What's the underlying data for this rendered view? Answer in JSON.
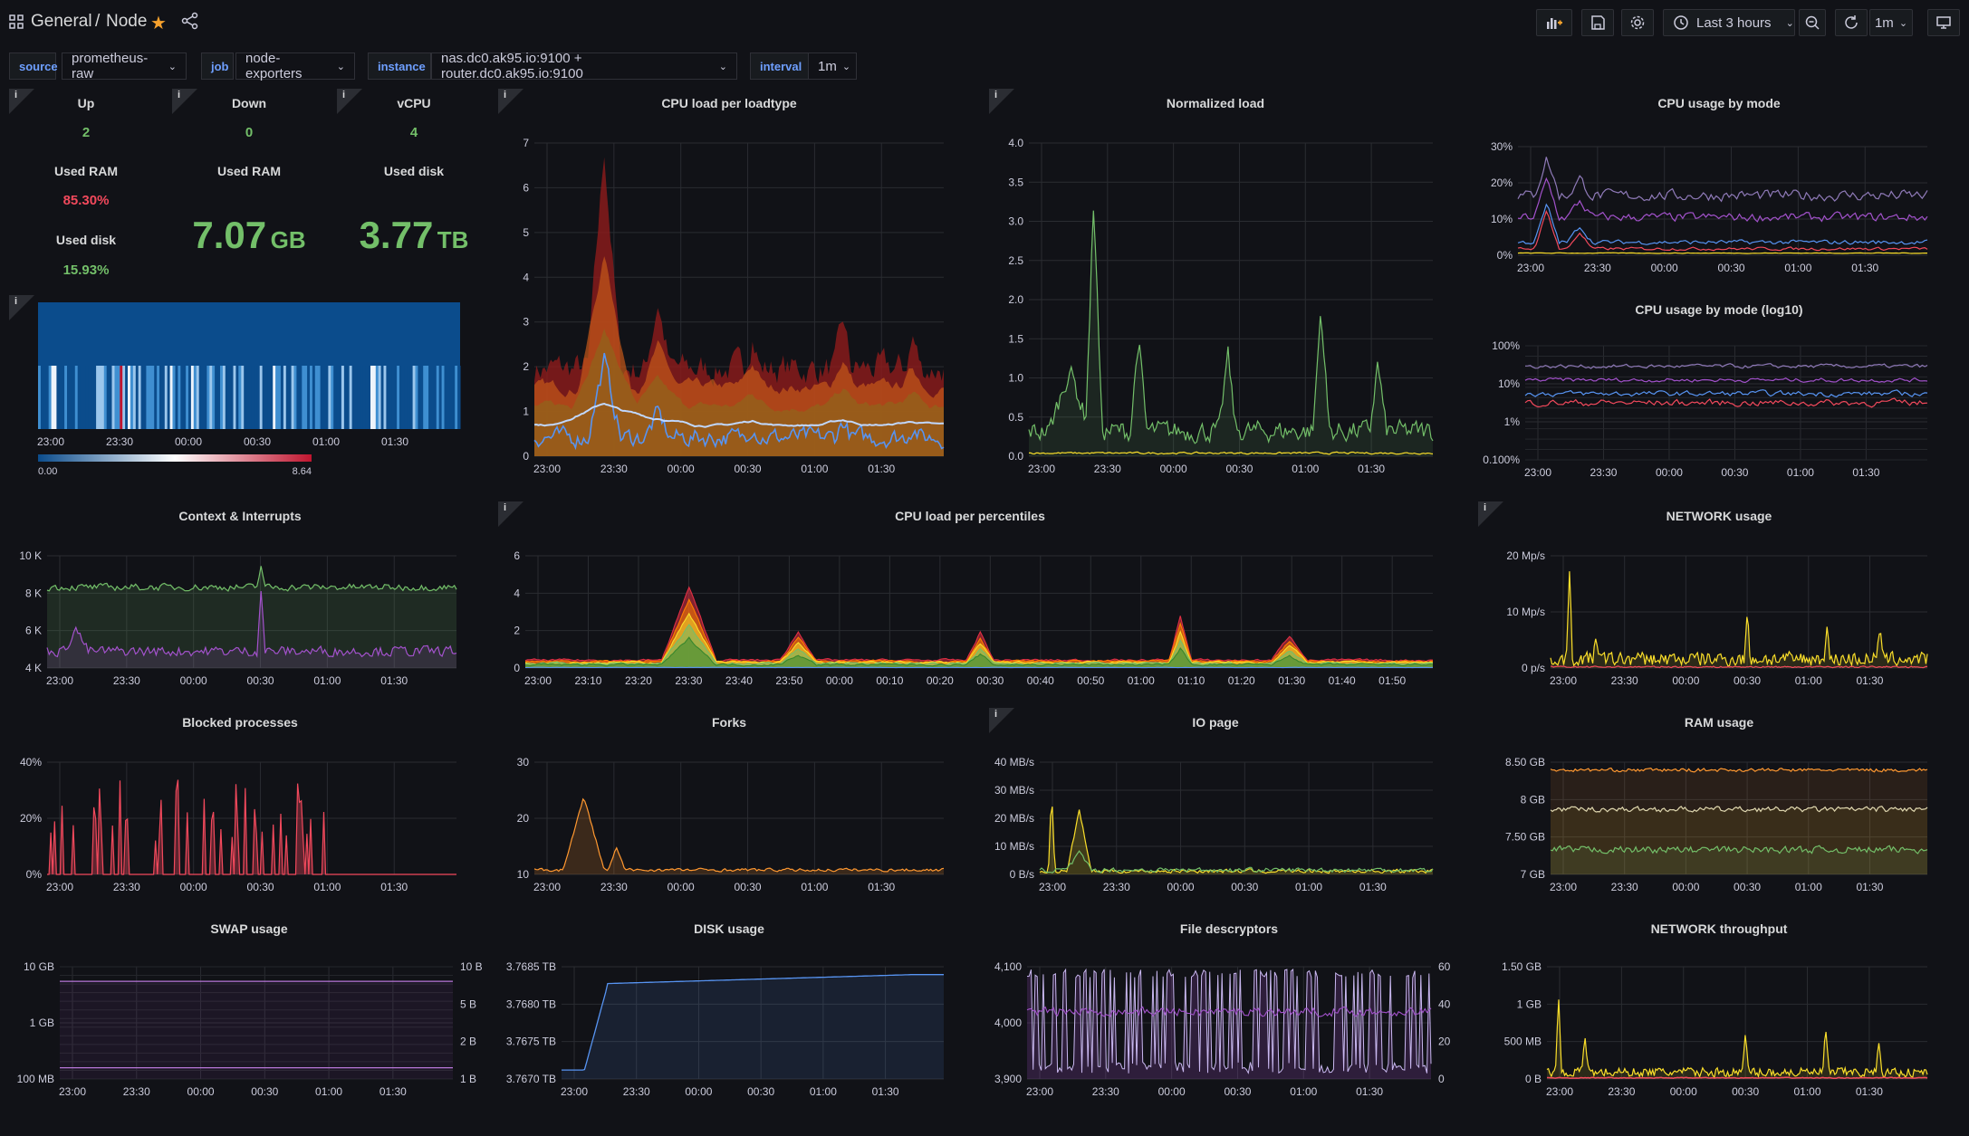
{
  "header": {
    "folder": "General",
    "separator": "/",
    "dashboard": "Node",
    "time_range": "Last 3 hours",
    "refresh": "1m"
  },
  "variables": [
    {
      "label": "source",
      "value": "prometheus-raw"
    },
    {
      "label": "job",
      "value": "node-exporters"
    },
    {
      "label": "instance",
      "value": "nas.dc0.ak95.io:9100 + router.dc0.ak95.io:9100"
    },
    {
      "label": "interval",
      "value": "1m"
    }
  ],
  "colors": {
    "green": "#73bf69",
    "red": "#f2495c",
    "purple": "#a352cc",
    "blue": "#5794f2",
    "yellow": "#fade2a",
    "orange": "#ff9830"
  },
  "stats": {
    "up": {
      "title": "Up",
      "value": "2"
    },
    "down": {
      "title": "Down",
      "value": "0"
    },
    "vcpu": {
      "title": "vCPU",
      "value": "4"
    },
    "used_ram_pct": {
      "title": "Used RAM",
      "value": "85.30%"
    },
    "used_disk_pct": {
      "title": "Used disk",
      "value": "15.93%"
    },
    "used_ram": {
      "title": "Used RAM",
      "value": "7.07",
      "unit": "GB"
    },
    "used_disk": {
      "title": "Used disk",
      "value": "3.77",
      "unit": "TB"
    }
  },
  "heatmap": {
    "legend_min": "0.00",
    "legend_max": "8.64"
  },
  "time_ticks_30": [
    "23:00",
    "23:30",
    "00:00",
    "00:30",
    "01:00",
    "01:30"
  ],
  "time_ticks_10": [
    "23:00",
    "23:10",
    "23:20",
    "23:30",
    "23:40",
    "23:50",
    "00:00",
    "00:10",
    "00:20",
    "00:30",
    "00:40",
    "00:50",
    "01:00",
    "01:10",
    "01:20",
    "01:30",
    "01:40",
    "01:50"
  ],
  "panels": {
    "cpu_load_loadtype": {
      "title": "CPU load per loadtype",
      "yticks": [
        "0",
        "1",
        "2",
        "3",
        "4",
        "5",
        "6",
        "7"
      ]
    },
    "normalized_load": {
      "title": "Normalized load",
      "yticks": [
        "0.0",
        "0.5",
        "1.0",
        "1.5",
        "2.0",
        "2.5",
        "3.0",
        "3.5",
        "4.0"
      ]
    },
    "cpu_usage_mode": {
      "title": "CPU usage by mode",
      "yticks": [
        "0%",
        "10%",
        "20%",
        "30%"
      ]
    },
    "cpu_usage_mode_log": {
      "title": "CPU usage by mode (log10)",
      "yticks": [
        "0.100%",
        "1%",
        "10%",
        "100%"
      ]
    },
    "context_interrupts": {
      "title": "Context & Interrupts",
      "yticks": [
        "4 K",
        "6 K",
        "8 K",
        "10 K"
      ]
    },
    "cpu_load_percentiles": {
      "title": "CPU load per percentiles",
      "yticks": [
        "0",
        "2",
        "4",
        "6"
      ]
    },
    "network_usage": {
      "title": "NETWORK usage",
      "yticks": [
        "0 p/s",
        "10 Mp/s",
        "20 Mp/s"
      ]
    },
    "blocked_processes": {
      "title": "Blocked processes",
      "yticks": [
        "0%",
        "20%",
        "40%"
      ]
    },
    "forks": {
      "title": "Forks",
      "yticks": [
        "10",
        "20",
        "30"
      ]
    },
    "io_page": {
      "title": "IO page",
      "yticks": [
        "0 B/s",
        "10 MB/s",
        "20 MB/s",
        "30 MB/s",
        "40 MB/s"
      ]
    },
    "ram_usage": {
      "title": "RAM usage",
      "yticks": [
        "7 GB",
        "7.50 GB",
        "8 GB",
        "8.50 GB"
      ]
    },
    "swap_usage": {
      "title": "SWAP usage",
      "yticks": [
        "100 MB",
        "1 GB",
        "10 GB"
      ],
      "yticks_right": [
        "1 B",
        "2 B",
        "5 B",
        "10 B"
      ]
    },
    "disk_usage": {
      "title": "DISK usage",
      "yticks": [
        "3.7670 TB",
        "3.7675 TB",
        "3.7680 TB",
        "3.7685 TB"
      ]
    },
    "file_descriptors": {
      "title": "File descryptors",
      "yticks": [
        "3,900",
        "4,000",
        "4,100"
      ],
      "yticks_right": [
        "0",
        "20",
        "40",
        "60"
      ]
    },
    "network_throughput": {
      "title": "NETWORK throughput",
      "yticks": [
        "0 B",
        "500 MB",
        "1 GB",
        "1.50 GB"
      ]
    }
  }
}
